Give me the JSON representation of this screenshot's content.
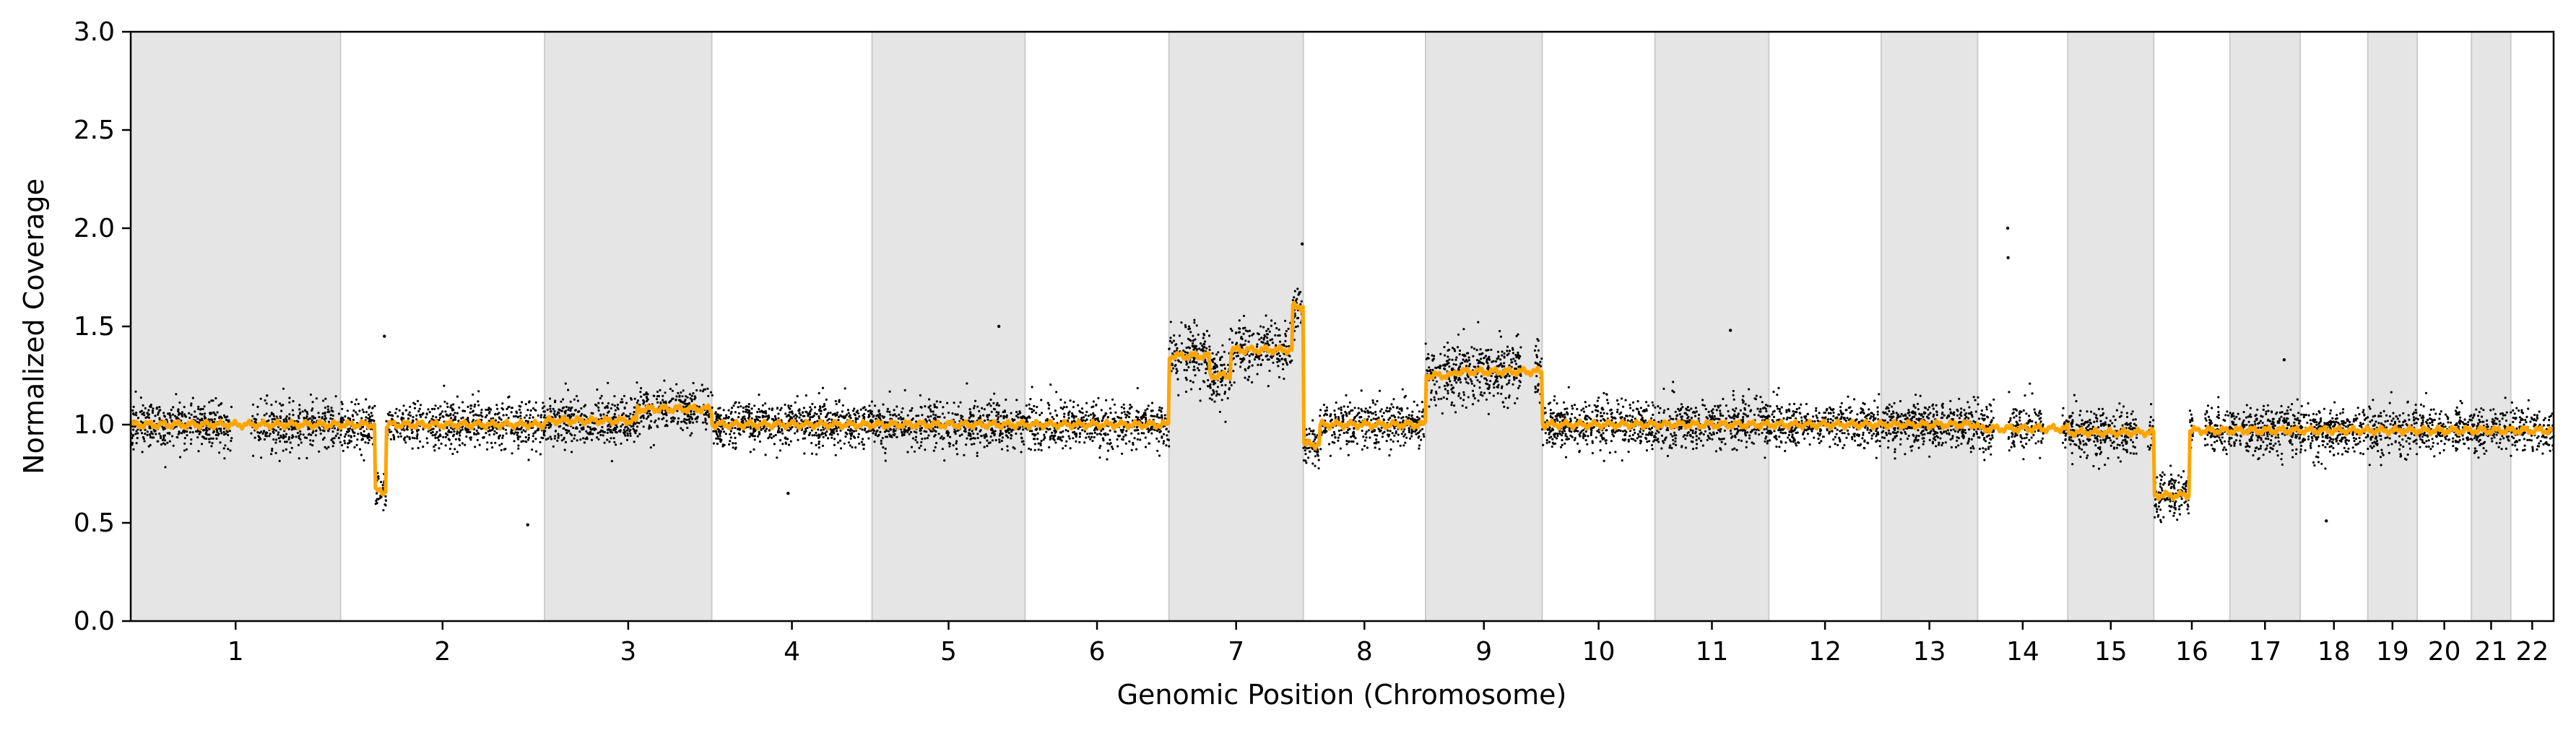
{
  "chart_data": {
    "type": "scatter",
    "xlabel": "Genomic Position (Chromosome)",
    "ylabel": "Normalized Coverage",
    "ylim": [
      0,
      3
    ],
    "yticks": [
      "0.0",
      "0.5",
      "1.0",
      "1.5",
      "2.0",
      "2.5",
      "3.0"
    ],
    "grid": false,
    "legend": "none",
    "colors": {
      "points": "#000000",
      "segment_line": "#ffa500",
      "band_fill": "#e5e5e5",
      "band_edge": "#cccccc"
    },
    "chromosomes": [
      {
        "name": "1",
        "start": 0.0,
        "end": 248.9
      },
      {
        "name": "2",
        "start": 248.9,
        "end": 491.1
      },
      {
        "name": "3",
        "start": 491.1,
        "end": 689.4
      },
      {
        "name": "4",
        "start": 689.4,
        "end": 879.6
      },
      {
        "name": "5",
        "start": 879.6,
        "end": 1061.1
      },
      {
        "name": "6",
        "start": 1061.1,
        "end": 1231.9
      },
      {
        "name": "7",
        "start": 1231.9,
        "end": 1391.2
      },
      {
        "name": "8",
        "start": 1391.2,
        "end": 1536.3
      },
      {
        "name": "9",
        "start": 1536.3,
        "end": 1674.7
      },
      {
        "name": "10",
        "start": 1674.7,
        "end": 1808.5
      },
      {
        "name": "11",
        "start": 1808.5,
        "end": 1943.6
      },
      {
        "name": "12",
        "start": 1943.6,
        "end": 2076.9
      },
      {
        "name": "13",
        "start": 2076.9,
        "end": 2191.3
      },
      {
        "name": "14",
        "start": 2191.3,
        "end": 2298.3
      },
      {
        "name": "15",
        "start": 2298.3,
        "end": 2400.3
      },
      {
        "name": "16",
        "start": 2400.3,
        "end": 2490.6
      },
      {
        "name": "17",
        "start": 2490.6,
        "end": 2573.9
      },
      {
        "name": "18",
        "start": 2573.9,
        "end": 2654.2
      },
      {
        "name": "19",
        "start": 2654.2,
        "end": 2712.8
      },
      {
        "name": "20",
        "start": 2712.8,
        "end": 2777.2
      },
      {
        "name": "21",
        "start": 2777.2,
        "end": 2823.9
      },
      {
        "name": "22",
        "start": 2823.9,
        "end": 2874.7
      }
    ],
    "segments": [
      {
        "start": 0.0,
        "end": 248.9,
        "value": 1.0
      },
      {
        "start": 248.9,
        "end": 290.0,
        "value": 1.0
      },
      {
        "start": 290.0,
        "end": 303.0,
        "value": 0.66
      },
      {
        "start": 303.0,
        "end": 491.1,
        "value": 1.0
      },
      {
        "start": 491.1,
        "end": 600.0,
        "value": 1.02
      },
      {
        "start": 600.0,
        "end": 689.4,
        "value": 1.08
      },
      {
        "start": 689.4,
        "end": 1231.9,
        "value": 1.0
      },
      {
        "start": 1231.9,
        "end": 1280.0,
        "value": 1.35
      },
      {
        "start": 1280.0,
        "end": 1305.0,
        "value": 1.25
      },
      {
        "start": 1305.0,
        "end": 1378.0,
        "value": 1.38
      },
      {
        "start": 1378.0,
        "end": 1391.2,
        "value": 1.6
      },
      {
        "start": 1391.2,
        "end": 1411.0,
        "value": 0.9
      },
      {
        "start": 1411.0,
        "end": 1536.3,
        "value": 1.0
      },
      {
        "start": 1536.3,
        "end": 1570.0,
        "value": 1.25
      },
      {
        "start": 1570.0,
        "end": 1674.7,
        "value": 1.27
      },
      {
        "start": 1674.7,
        "end": 2191.3,
        "value": 1.0
      },
      {
        "start": 2191.3,
        "end": 2298.3,
        "value": 0.98
      },
      {
        "start": 2298.3,
        "end": 2400.3,
        "value": 0.96
      },
      {
        "start": 2400.3,
        "end": 2442.0,
        "value": 0.64
      },
      {
        "start": 2442.0,
        "end": 2874.7,
        "value": 0.97
      }
    ],
    "gaps": [
      {
        "start": 120.0,
        "end": 143.0
      },
      {
        "start": 1650.0,
        "end": 1666.0
      },
      {
        "start": 2211.0,
        "end": 2228.0
      },
      {
        "start": 2270.0,
        "end": 2292.0
      },
      {
        "start": 2380.0,
        "end": 2392.0
      },
      {
        "start": 2447.0,
        "end": 2460.0
      }
    ],
    "outliers": [
      {
        "x": 2227.0,
        "y": 2.0
      },
      {
        "x": 2227.5,
        "y": 1.85
      },
      {
        "x": 1390.0,
        "y": 1.92
      },
      {
        "x": 471.0,
        "y": 0.49
      },
      {
        "x": 301.0,
        "y": 1.45
      },
      {
        "x": 1030.0,
        "y": 1.5
      },
      {
        "x": 1898.0,
        "y": 1.48
      },
      {
        "x": 2605.0,
        "y": 0.51
      },
      {
        "x": 2555.0,
        "y": 1.33
      },
      {
        "x": 780.0,
        "y": 0.65
      }
    ],
    "scatter_noise_sd": 0.06,
    "points_per_chromosome_unit": 3.2
  }
}
